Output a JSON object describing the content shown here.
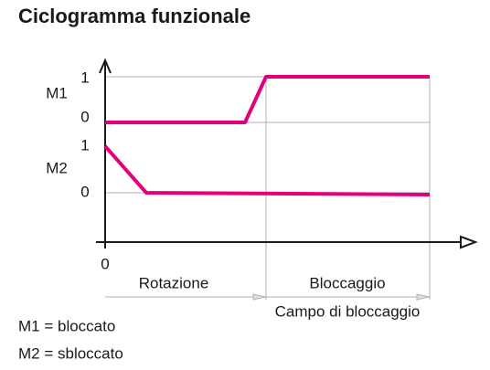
{
  "title": "Ciclogramma funzionale",
  "signals": [
    {
      "label": "M1",
      "levels": [
        "1",
        "0"
      ]
    },
    {
      "label": "M2",
      "levels": [
        "1",
        "0"
      ]
    }
  ],
  "x_axis": {
    "origin": "0"
  },
  "phases": [
    "Rotazione",
    "Bloccaggio"
  ],
  "range": "Campo di bloccaggio",
  "legend": [
    "M1 = bloccato",
    "M2 = sbloccato"
  ]
}
